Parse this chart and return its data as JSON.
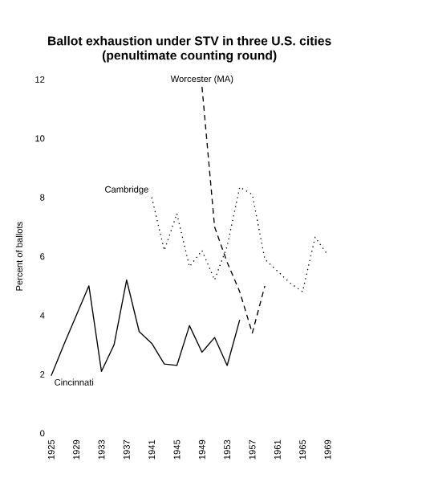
{
  "chart_data": {
    "type": "line",
    "title": "Ballot exhaustion under STV in three U.S. cities\n(penultimate counting round)",
    "ylabel": "Percent of ballots",
    "xlim": [
      1925,
      1969
    ],
    "ylim": [
      0,
      12
    ],
    "xticks": [
      1925,
      1929,
      1933,
      1937,
      1941,
      1945,
      1949,
      1953,
      1957,
      1961,
      1965,
      1969
    ],
    "yticks": [
      0,
      2,
      4,
      6,
      8,
      10,
      12
    ],
    "grid": false,
    "legend": false,
    "marker": "none",
    "series": [
      {
        "name": "Cincinnati",
        "color": "#000000",
        "line_style": "solid",
        "x": [
          1925,
          1927,
          1929,
          1931,
          1933,
          1935,
          1937,
          1939,
          1941,
          1943,
          1945,
          1947,
          1949,
          1951,
          1953,
          1955
        ],
        "values": [
          1.95,
          3.0,
          4.0,
          5.0,
          2.1,
          3.0,
          5.2,
          3.45,
          3.05,
          2.35,
          2.3,
          3.65,
          2.75,
          3.25,
          2.3,
          3.85
        ]
      },
      {
        "name": "Cambridge",
        "color": "#000000",
        "line_style": "dotted",
        "x": [
          1941,
          1943,
          1945,
          1947,
          1949,
          1951,
          1953,
          1955,
          1957,
          1959,
          1961,
          1963,
          1965,
          1967,
          1969
        ],
        "values": [
          8.0,
          6.2,
          7.45,
          5.65,
          6.2,
          5.2,
          6.35,
          8.35,
          8.1,
          5.9,
          5.5,
          5.1,
          4.8,
          6.65,
          6.05
        ]
      },
      {
        "name": "Worcester (MA)",
        "color": "#000000",
        "line_style": "dashed",
        "x": [
          1949,
          1951,
          1953,
          1955,
          1957,
          1959
        ],
        "values": [
          11.75,
          7.0,
          5.8,
          4.8,
          3.4,
          5.0
        ]
      }
    ]
  }
}
